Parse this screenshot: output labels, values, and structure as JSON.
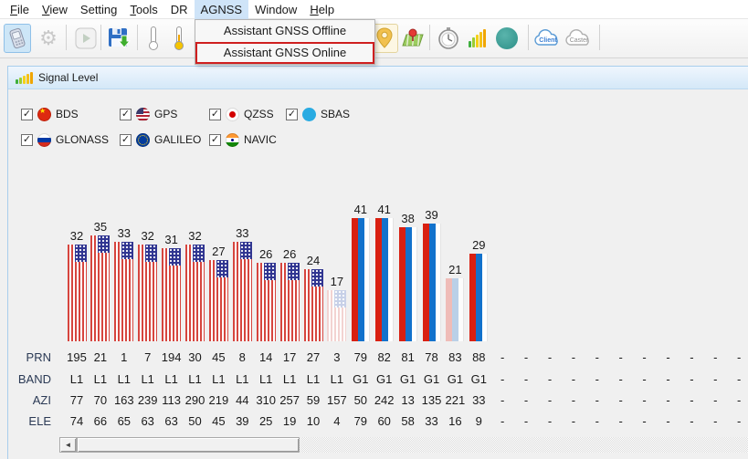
{
  "menu_bar": {
    "items": [
      {
        "label": "File",
        "underline": 0,
        "active": false
      },
      {
        "label": "View",
        "underline": 0,
        "active": false
      },
      {
        "label": "Setting",
        "underline": -1,
        "active": false
      },
      {
        "label": "Tools",
        "underline": 0,
        "active": false
      },
      {
        "label": "DR",
        "underline": -1,
        "active": false
      },
      {
        "label": "AGNSS",
        "underline": -1,
        "active": true
      },
      {
        "label": "Window",
        "underline": -1,
        "active": false
      },
      {
        "label": "Help",
        "underline": 0,
        "active": false
      }
    ]
  },
  "agnss_menu": {
    "items": [
      {
        "label": "Assistant GNSS Offline",
        "highlighted": false
      },
      {
        "label": "Assistant GNSS Online",
        "highlighted": true
      }
    ]
  },
  "toolbar": {
    "client_label": "Client",
    "caster_label": "Caster",
    "buttons": [
      "connect-device",
      "settings-gear",
      "play",
      "save",
      "thermometer-outline",
      "thermometer-filled",
      "location-pin",
      "map-pin",
      "stopwatch",
      "signal-bars",
      "teal-status",
      "cloud-client",
      "cloud-caster"
    ]
  },
  "signal_panel": {
    "title": "Signal Level",
    "constellations": [
      {
        "label": "BDS",
        "flag": "china",
        "checked": true,
        "row": 0,
        "col": 0
      },
      {
        "label": "GPS",
        "flag": "usa",
        "checked": true,
        "row": 0,
        "col": 1
      },
      {
        "label": "QZSS",
        "flag": "japan",
        "checked": true,
        "row": 0,
        "col": 2
      },
      {
        "label": "SBAS",
        "flag": "sbas",
        "checked": true,
        "row": 0,
        "col": 3
      },
      {
        "label": "GLONASS",
        "flag": "russia",
        "checked": true,
        "row": 1,
        "col": 0
      },
      {
        "label": "GALILEO",
        "flag": "eu",
        "checked": true,
        "row": 1,
        "col": 1
      },
      {
        "label": "NAVIC",
        "flag": "india",
        "checked": true,
        "row": 1,
        "col": 2
      }
    ]
  },
  "chart_data": {
    "type": "bar",
    "row_labels": [
      "PRN",
      "BAND",
      "AZI",
      "ELE"
    ],
    "empty_cell": "-",
    "empty_columns": 11,
    "satellites": [
      {
        "prn": "195",
        "band": "L1",
        "azi": "77",
        "ele": "74",
        "cn0": 32,
        "flag": "usa",
        "faded": false
      },
      {
        "prn": "21",
        "band": "L1",
        "azi": "70",
        "ele": "66",
        "cn0": 35,
        "flag": "usa",
        "faded": false
      },
      {
        "prn": "1",
        "band": "L1",
        "azi": "163",
        "ele": "65",
        "cn0": 33,
        "flag": "usa",
        "faded": false
      },
      {
        "prn": "7",
        "band": "L1",
        "azi": "239",
        "ele": "63",
        "cn0": 32,
        "flag": "usa",
        "faded": false
      },
      {
        "prn": "194",
        "band": "L1",
        "azi": "113",
        "ele": "63",
        "cn0": 31,
        "flag": "usa",
        "faded": false
      },
      {
        "prn": "30",
        "band": "L1",
        "azi": "290",
        "ele": "50",
        "cn0": 32,
        "flag": "usa",
        "faded": false
      },
      {
        "prn": "45",
        "band": "L1",
        "azi": "219",
        "ele": "45",
        "cn0": 27,
        "flag": "usa",
        "faded": false
      },
      {
        "prn": "8",
        "band": "L1",
        "azi": "44",
        "ele": "39",
        "cn0": 33,
        "flag": "usa",
        "faded": false
      },
      {
        "prn": "14",
        "band": "L1",
        "azi": "310",
        "ele": "25",
        "cn0": 26,
        "flag": "usa",
        "faded": false
      },
      {
        "prn": "17",
        "band": "L1",
        "azi": "257",
        "ele": "19",
        "cn0": 26,
        "flag": "usa",
        "faded": false
      },
      {
        "prn": "27",
        "band": "L1",
        "azi": "59",
        "ele": "10",
        "cn0": 24,
        "flag": "usa",
        "faded": false
      },
      {
        "prn": "3",
        "band": "L1",
        "azi": "157",
        "ele": "4",
        "cn0": 17,
        "flag": "usa",
        "faded": true
      },
      {
        "prn": "79",
        "band": "G1",
        "azi": "50",
        "ele": "79",
        "cn0": 41,
        "flag": "russia",
        "faded": false
      },
      {
        "prn": "82",
        "band": "G1",
        "azi": "242",
        "ele": "60",
        "cn0": 41,
        "flag": "russia",
        "faded": false
      },
      {
        "prn": "81",
        "band": "G1",
        "azi": "13",
        "ele": "58",
        "cn0": 38,
        "flag": "russia",
        "faded": false
      },
      {
        "prn": "78",
        "band": "G1",
        "azi": "135",
        "ele": "33",
        "cn0": 39,
        "flag": "russia",
        "faded": false
      },
      {
        "prn": "83",
        "band": "G1",
        "azi": "221",
        "ele": "16",
        "cn0": 21,
        "flag": "russia",
        "faded": true
      },
      {
        "prn": "88",
        "band": "G1",
        "azi": "33",
        "ele": "9",
        "cn0": 29,
        "flag": "russia",
        "faded": false
      }
    ]
  },
  "colors": {
    "us_red": "#d6453e",
    "us_faded_red": "#f3d3d1",
    "canton_blue": "#2f3490",
    "canton_faded": "#c7d0e8",
    "ru_red": "#d92011",
    "ru_blue": "#1272cc",
    "ru_faded_red": "#efbcb8",
    "ru_faded_blue": "#b9d0e8",
    "menu_highlight": "#cfe4f8",
    "selection_red": "#cf1f1f",
    "panel_border": "#a8cdec",
    "header_grad_top": "#eff6fd",
    "header_grad_bottom": "#d4e8f8",
    "toolbar_selected_bg": "#cde6f7",
    "toolbar_selected_border": "#8fc0e8"
  }
}
